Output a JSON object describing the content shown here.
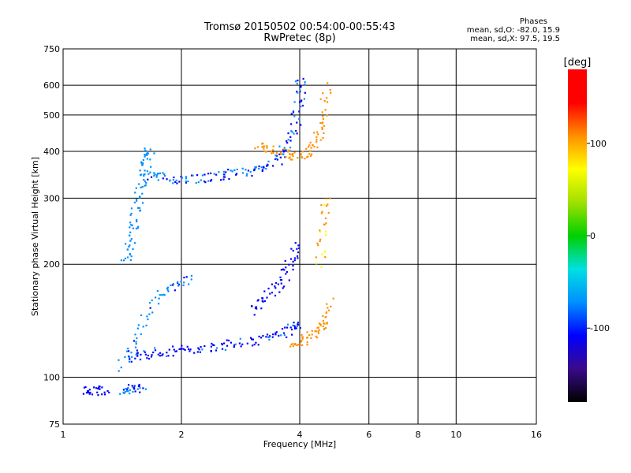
{
  "header": {
    "title_line1": "Tromsø 20150502 00:54:00-00:55:43",
    "title_line2": "RwPretec (8p)",
    "info_title": "Phases",
    "info_line1": "mean, sd,O: -82.0, 15.9",
    "info_line2": "mean, sd,X:  97.5, 19.5"
  },
  "chart_data": {
    "type": "scatter",
    "title": "Tromsø 20150502 00:54:00-00:55:43",
    "subtitle": "RwPretec (8p)",
    "xlabel": "Frequency [MHz]",
    "ylabel": "Stationary phase Virtual Height [km]",
    "x_scale": "log",
    "y_scale": "log",
    "xlim": [
      1,
      16
    ],
    "ylim": [
      75,
      750
    ],
    "x_ticks": [
      1,
      2,
      4,
      6,
      8,
      10,
      16
    ],
    "x_tick_labels": [
      "1",
      "2",
      "4",
      "6",
      "8",
      "10",
      "16"
    ],
    "y_ticks": [
      75,
      100,
      200,
      300,
      400,
      500,
      600,
      750
    ],
    "y_tick_labels": [
      "75",
      "100",
      "200",
      "300",
      "400",
      "500",
      "600",
      "750"
    ],
    "grid": true,
    "colorbar": {
      "label": "[deg]",
      "range": [
        -180,
        180
      ],
      "ticks": [
        100,
        0,
        -100
      ],
      "tick_labels": [
        "100",
        "0",
        "-100"
      ],
      "colors": [
        "#000000",
        "#3a0a8a",
        "#0000ff",
        "#0090ff",
        "#00e0e0",
        "#00d000",
        "#a0e000",
        "#ffff00",
        "#ff9000",
        "#ff0000",
        "#ff0000"
      ]
    },
    "series": [
      {
        "name": "O",
        "mean": -82.0,
        "sd": 15.9,
        "traces": [
          {
            "x": [
              1.45,
              1.48,
              1.52,
              1.56,
              1.6,
              1.63,
              1.66
            ],
            "y": [
              200,
              230,
              260,
              300,
              340,
              380,
              410
            ],
            "phase": -75
          },
          {
            "x": [
              1.65,
              1.8,
              2.0,
              2.3,
              2.6,
              2.9,
              3.2,
              3.5,
              3.7,
              3.9,
              4.0,
              4.05
            ],
            "y": [
              345,
              340,
              338,
              340,
              345,
              352,
              362,
              380,
              410,
              470,
              560,
              640
            ],
            "phase": -90
          },
          {
            "x": [
              1.45,
              1.6,
              1.8,
              2.0,
              2.3,
              2.6,
              3.0,
              3.4,
              3.8,
              4.0
            ],
            "y": [
              112,
              115,
              117,
              118,
              120,
              122,
              125,
              129,
              133,
              140
            ],
            "phase": -100
          },
          {
            "x": [
              1.4,
              1.55,
              1.7,
              1.9,
              2.1
            ],
            "y": [
              105,
              130,
              160,
              175,
              185
            ],
            "phase": -80
          },
          {
            "x": [
              3.0,
              3.3,
              3.6,
              3.8,
              3.95
            ],
            "y": [
              150,
              165,
              180,
              200,
              230
            ],
            "phase": -110
          },
          {
            "x": [
              1.15,
              1.2,
              1.3
            ],
            "y": [
              93,
              92,
              92
            ],
            "phase": -110
          },
          {
            "x": [
              1.4,
              1.5,
              1.6
            ],
            "y": [
              93,
              93,
              93
            ],
            "phase": -90
          }
        ]
      },
      {
        "name": "X",
        "mean": 97.5,
        "sd": 19.5,
        "traces": [
          {
            "x": [
              3.1,
              3.4,
              3.8,
              4.1,
              4.4,
              4.6,
              4.7
            ],
            "y": [
              415,
              400,
              390,
              395,
              420,
              480,
              600
            ],
            "phase": 105
          },
          {
            "x": [
              3.8,
              4.1,
              4.4,
              4.6,
              4.75
            ],
            "y": [
              120,
              125,
              132,
              140,
              160
            ],
            "phase": 110
          },
          {
            "x": [
              4.5,
              4.6,
              4.7
            ],
            "y": [
              200,
              250,
              300
            ],
            "phase": 95
          }
        ]
      }
    ]
  }
}
